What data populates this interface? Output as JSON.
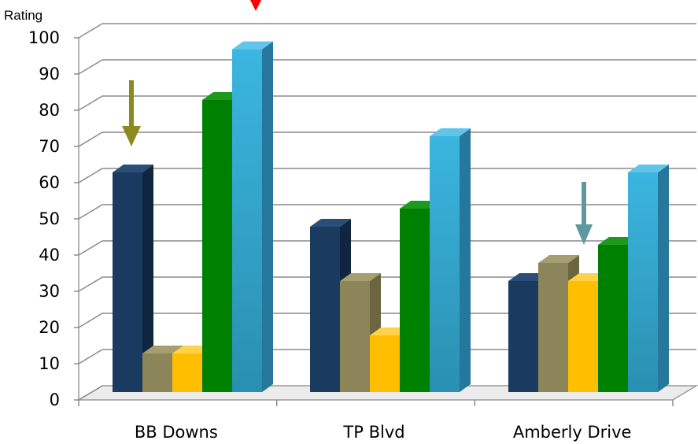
{
  "chart_data": {
    "type": "bar",
    "ylabel": "Rating",
    "xlabel": "",
    "ylim": [
      0,
      100
    ],
    "y_ticks": [
      "0",
      "10",
      "20",
      "30",
      "40",
      "50",
      "60",
      "70",
      "80",
      "90",
      "100"
    ],
    "categories": [
      "BB Downs",
      "TP Blvd",
      "Amberly Drive"
    ],
    "series": [
      {
        "values": [
          65,
          50,
          35
        ],
        "color": "#1b3a5f",
        "side": "#0f2540",
        "top": "#2a4e78"
      },
      {
        "values": [
          15,
          35,
          40
        ],
        "color": "#8c8559",
        "side": "#6b6540",
        "top": "#a59e70"
      },
      {
        "values": [
          15,
          20,
          35
        ],
        "color": "#ffbf00",
        "side": "#d99f00",
        "top": "#ffd24a"
      },
      {
        "values": [
          85,
          55,
          45
        ],
        "color": "#008000",
        "side": "#005a00",
        "top": "#1d9a1d"
      },
      {
        "values": [
          99,
          75,
          65
        ],
        "color": "#3bb0dc",
        "side": "#25789b",
        "top": "#61c4ea"
      }
    ],
    "annotations": [
      {
        "category": "BB Downs",
        "value": 65,
        "color": "#8c8a1e",
        "type": "arrow-down"
      },
      {
        "category": "Amberly Drive",
        "value": 35,
        "color": "#5c9aa0",
        "type": "arrow-down"
      },
      {
        "category": "BB Downs",
        "value": 100,
        "color": "#ff0000",
        "type": "arrow-down"
      }
    ],
    "grid": true,
    "style": "3d-clustered-column",
    "legend": "none"
  }
}
